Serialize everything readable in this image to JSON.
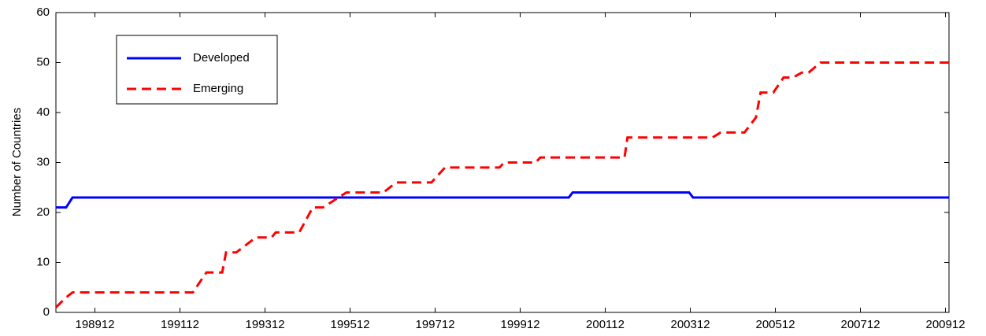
{
  "chart_data": {
    "type": "line",
    "y_label": "Number of Countries",
    "x": [
      1989.0,
      1989.24,
      1989.39,
      1989.41,
      1992.22,
      1992.54,
      1992.91,
      1993.0,
      1993.24,
      1993.7,
      1994.07,
      1994.17,
      1994.72,
      1995.04,
      1995.28,
      1995.83,
      1996.7,
      1997.0,
      1997.83,
      1998.15,
      1999.43,
      1999.54,
      2000.28,
      2000.39,
      2001.06,
      2001.15,
      2002.37,
      2002.44,
      2003.89,
      2003.98,
      2004.44,
      2004.63,
      2005.19,
      2005.28,
      2005.46,
      2005.57,
      2005.87,
      2006.11,
      2006.33,
      2006.54,
      2006.7,
      2006.98,
      2010.0
    ],
    "series": [
      {
        "name": "Developed",
        "color": "#0000ff",
        "dash": "solid",
        "values": [
          21,
          21,
          23,
          23,
          23,
          23,
          23,
          23,
          23,
          23,
          23,
          23,
          23,
          23,
          23,
          23,
          23,
          23,
          23,
          23,
          23,
          23,
          23,
          23,
          23,
          24,
          24,
          24,
          24,
          23,
          23,
          23,
          23,
          23,
          23,
          23,
          23,
          23,
          23,
          23,
          23,
          23,
          23
        ]
      },
      {
        "name": "Emerging",
        "color": "#ff0000",
        "dash": "dashed",
        "values": [
          1,
          3,
          4,
          4,
          4,
          8,
          8,
          12,
          12,
          15,
          15,
          16,
          16,
          21,
          21,
          24,
          24,
          26,
          26,
          29,
          29,
          30,
          30,
          31,
          31,
          31,
          31,
          35,
          35,
          35,
          35,
          36,
          36,
          37,
          39,
          44,
          44,
          47,
          47,
          48,
          48,
          50,
          50
        ]
      }
    ],
    "xlim": [
      1989.0,
      2010.0
    ],
    "xticks": [
      {
        "value": 1989.917,
        "label": "198912"
      },
      {
        "value": 1991.917,
        "label": "199112"
      },
      {
        "value": 1993.917,
        "label": "199312"
      },
      {
        "value": 1995.917,
        "label": "199512"
      },
      {
        "value": 1997.917,
        "label": "199712"
      },
      {
        "value": 1999.917,
        "label": "199912"
      },
      {
        "value": 2001.917,
        "label": "200112"
      },
      {
        "value": 2003.917,
        "label": "200312"
      },
      {
        "value": 2005.917,
        "label": "200512"
      },
      {
        "value": 2007.917,
        "label": "200712"
      },
      {
        "value": 2009.917,
        "label": "200912"
      }
    ],
    "ylim": [
      0,
      60
    ],
    "yticks": [
      0,
      10,
      20,
      30,
      40,
      50,
      60
    ],
    "grid": false,
    "legend": "upper left"
  }
}
